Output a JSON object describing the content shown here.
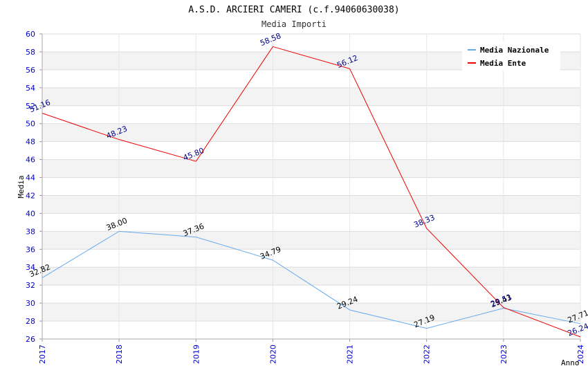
{
  "header": {
    "title": "A.S.D. ARCIERI CAMERI (c.f.94060630038)",
    "subtitle": "Media Importi"
  },
  "chart_data": {
    "type": "line",
    "categories": [
      "2017",
      "2018",
      "2019",
      "2020",
      "2021",
      "2022",
      "2023",
      "2024"
    ],
    "xlabel": "Anno",
    "ylabel": "Media",
    "ylim": [
      26,
      60
    ],
    "ytick_step": 2,
    "grid": true,
    "legend_position": "top-right",
    "series": [
      {
        "name": "Media Nazionale",
        "color": "#66aaee",
        "label_color": "#000000",
        "values": [
          32.82,
          38.0,
          37.36,
          34.79,
          29.24,
          27.19,
          29.43,
          27.71
        ],
        "labels": [
          "32.82",
          "38.00",
          "37.36",
          "34.79",
          "29.24",
          "27.19",
          "29.43",
          "27.71"
        ]
      },
      {
        "name": "Media Ente",
        "color": "#ee0000",
        "label_color": "#000088",
        "values": [
          51.16,
          48.23,
          45.8,
          58.58,
          56.12,
          38.33,
          29.51,
          26.24
        ],
        "labels": [
          "51.16",
          "48.23",
          "45.80",
          "58.58",
          "56.12",
          "38.33",
          "29.51",
          "26.24"
        ]
      }
    ]
  }
}
